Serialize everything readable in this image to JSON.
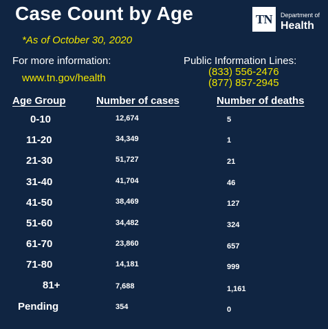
{
  "header": {
    "title": "Case Count by Age",
    "as_of": "*As of October 30, 2020"
  },
  "logo": {
    "mark": "TN",
    "line1": "Department of",
    "line2": "Health"
  },
  "info": {
    "more_info_label": "For more information:",
    "url": "www.tn.gov/health",
    "public_lines_label": "Public Information Lines:",
    "phone1": "(833) 556-2476",
    "phone2": "(877) 857-2945"
  },
  "table": {
    "headers": {
      "age_group": "Age Group",
      "cases": "Number of cases",
      "deaths": "Number of deaths"
    },
    "rows": [
      {
        "age": "0-10",
        "cases": "12,674",
        "deaths": "5"
      },
      {
        "age": "11-20",
        "cases": "34,349",
        "deaths": "1"
      },
      {
        "age": "21-30",
        "cases": "51,727",
        "deaths": "21"
      },
      {
        "age": "31-40",
        "cases": "41,704",
        "deaths": "46"
      },
      {
        "age": "41-50",
        "cases": "38,469",
        "deaths": "127"
      },
      {
        "age": "51-60",
        "cases": "34,482",
        "deaths": "324"
      },
      {
        "age": "61-70",
        "cases": "23,860",
        "deaths": "657"
      },
      {
        "age": "71-80",
        "cases": "14,181",
        "deaths": "999"
      },
      {
        "age": "81+",
        "cases": "7,688",
        "deaths": "1,161"
      },
      {
        "age": "Pending",
        "cases": "354",
        "deaths": "0"
      }
    ]
  }
}
